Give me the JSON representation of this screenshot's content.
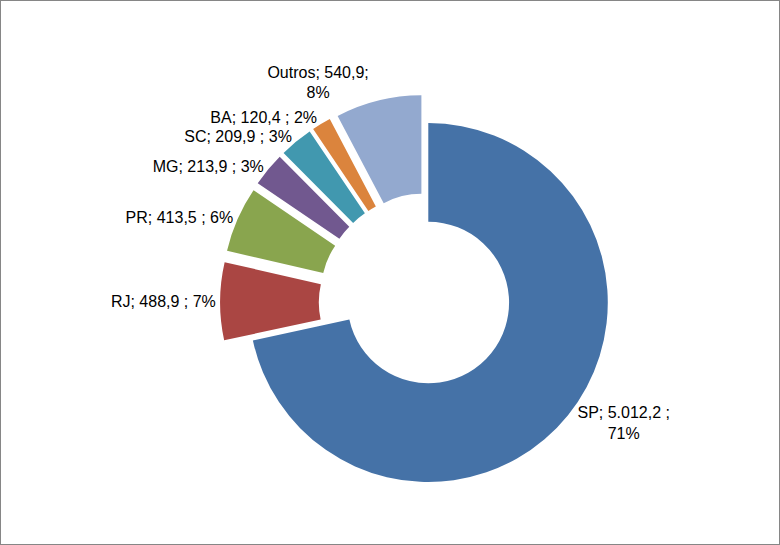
{
  "chart_data": {
    "type": "pie",
    "categories": [
      "SP",
      "RJ",
      "PR",
      "MG",
      "SC",
      "BA",
      "Outros"
    ],
    "values": [
      5012.2,
      488.9,
      413.5,
      213.9,
      209.9,
      120.4,
      540.9
    ],
    "value_labels": [
      "SP; 5.012,2 ;\n71%",
      "RJ; 488,9 ; 7%",
      "PR; 413,5 ; 6%",
      "MG; 213,9 ; 3%",
      "SC; 209,9 ; 3%",
      "BA; 120,4 ; 2%",
      "Outros; 540,9;\n8%"
    ],
    "colors": [
      "#4572a7",
      "#aa4643",
      "#89a54e",
      "#71588f",
      "#4198af",
      "#db843d",
      "#93a9cf"
    ],
    "data_labels": true
  }
}
